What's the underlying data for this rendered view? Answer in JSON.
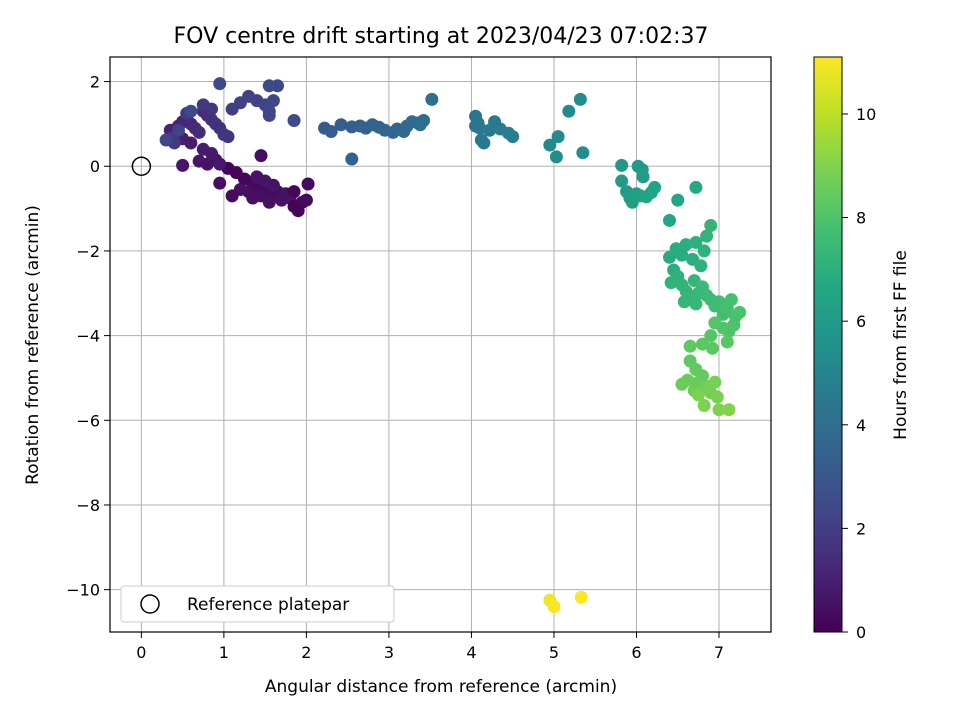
{
  "chart_data": {
    "type": "scatter",
    "title": "FOV centre drift starting at 2023/04/23 07:02:37",
    "xlabel": "Angular distance from reference (arcmin)",
    "ylabel": "Rotation from reference (arcmin)",
    "xlim": [
      -0.38,
      7.63
    ],
    "ylim": [
      -11.0,
      2.58
    ],
    "xticks": [
      0,
      1,
      2,
      3,
      4,
      5,
      6,
      7
    ],
    "yticks": [
      2,
      0,
      -2,
      -4,
      -6,
      -8,
      -10
    ],
    "tick_labels": {
      "x": [
        "0",
        "1",
        "2",
        "3",
        "4",
        "5",
        "6",
        "7"
      ],
      "y": [
        "2",
        "0",
        "−2",
        "−4",
        "−6",
        "−8",
        "−10"
      ]
    },
    "grid": true,
    "legend": {
      "placement": "lower-left",
      "label": "Reference platepar"
    },
    "reference_point": {
      "x": 0,
      "y": 0
    },
    "colorbar": {
      "label": "Hours from first FF file",
      "colormap": "viridis",
      "range": [
        0,
        11.1
      ],
      "ticks": [
        0,
        2,
        4,
        6,
        8,
        10
      ],
      "tick_labels": [
        "0",
        "2",
        "4",
        "6",
        "8",
        "10"
      ]
    },
    "series": [
      {
        "colored_by": "hours",
        "points": [
          [
            1.05,
            -0.05,
            0.1
          ],
          [
            1.15,
            -0.15,
            0.15
          ],
          [
            1.25,
            -0.3,
            0.2
          ],
          [
            1.35,
            -0.4,
            0.25
          ],
          [
            1.4,
            -0.5,
            0.3
          ],
          [
            1.5,
            -0.55,
            0.3
          ],
          [
            1.55,
            -0.65,
            0.35
          ],
          [
            1.6,
            -0.7,
            0.35
          ],
          [
            1.65,
            -0.6,
            0.4
          ],
          [
            1.45,
            -0.7,
            0.4
          ],
          [
            1.35,
            -0.75,
            0.45
          ],
          [
            1.3,
            -0.6,
            0.45
          ],
          [
            1.2,
            -0.55,
            0.5
          ],
          [
            1.55,
            -0.85,
            0.5
          ],
          [
            1.7,
            -0.8,
            0.55
          ],
          [
            1.75,
            -0.65,
            0.55
          ],
          [
            1.8,
            -0.75,
            0.6
          ],
          [
            1.6,
            -0.45,
            0.6
          ],
          [
            1.5,
            -0.35,
            0.65
          ],
          [
            1.4,
            -0.25,
            0.65
          ],
          [
            1.85,
            -0.6,
            0.2
          ],
          [
            1.9,
            -1.05,
            0.15
          ],
          [
            1.95,
            -0.85,
            0.2
          ],
          [
            2.0,
            -0.8,
            0.25
          ],
          [
            2.02,
            -0.42,
            0.3
          ],
          [
            1.85,
            -0.95,
            0.1
          ],
          [
            1.1,
            -0.7,
            0.35
          ],
          [
            1.45,
            0.25,
            0.4
          ],
          [
            0.95,
            -0.4,
            0.45
          ],
          [
            0.9,
            0.15,
            0.5
          ],
          [
            0.8,
            0.05,
            0.55
          ],
          [
            0.7,
            0.12,
            0.6
          ],
          [
            0.5,
            0.02,
            0.65
          ],
          [
            0.95,
            0.05,
            0.7
          ],
          [
            0.85,
            0.3,
            0.75
          ],
          [
            0.75,
            0.4,
            0.8
          ],
          [
            0.6,
            0.55,
            0.85
          ],
          [
            0.5,
            0.65,
            0.9
          ],
          [
            0.4,
            0.75,
            0.95
          ],
          [
            0.35,
            0.85,
            1.0
          ],
          [
            0.45,
            0.95,
            1.05
          ],
          [
            0.5,
            1.05,
            1.1
          ],
          [
            0.55,
            1.15,
            1.2
          ],
          [
            0.6,
            1.0,
            1.25
          ],
          [
            0.65,
            0.9,
            1.3
          ],
          [
            0.7,
            0.8,
            1.35
          ],
          [
            0.75,
            1.3,
            1.4
          ],
          [
            0.8,
            1.2,
            1.45
          ],
          [
            0.85,
            1.1,
            1.5
          ],
          [
            0.9,
            1.0,
            1.55
          ],
          [
            0.95,
            0.9,
            1.6
          ],
          [
            1.0,
            0.75,
            1.65
          ],
          [
            1.05,
            0.7,
            1.7
          ],
          [
            0.85,
            1.35,
            1.75
          ],
          [
            0.75,
            1.45,
            1.8
          ],
          [
            0.55,
            1.25,
            1.85
          ],
          [
            0.4,
            0.55,
            1.9
          ],
          [
            0.35,
            0.65,
            1.95
          ],
          [
            1.1,
            1.35,
            2.0
          ],
          [
            1.2,
            1.5,
            2.05
          ],
          [
            1.3,
            1.65,
            2.1
          ],
          [
            1.4,
            1.55,
            2.15
          ],
          [
            1.5,
            1.45,
            2.2
          ],
          [
            1.55,
            1.3,
            2.25
          ],
          [
            1.55,
            1.2,
            2.3
          ],
          [
            1.6,
            1.55,
            2.35
          ],
          [
            1.65,
            1.9,
            2.4
          ],
          [
            1.55,
            1.9,
            2.45
          ],
          [
            0.95,
            1.95,
            2.5
          ],
          [
            1.85,
            1.08,
            2.55
          ],
          [
            0.3,
            0.62,
            2.3
          ],
          [
            0.6,
            1.3,
            2.4
          ],
          [
            0.45,
            0.85,
            2.2
          ],
          [
            2.22,
            0.9,
            3.2
          ],
          [
            2.3,
            0.82,
            3.25
          ],
          [
            2.42,
            0.98,
            3.3
          ],
          [
            2.55,
            0.93,
            3.35
          ],
          [
            2.65,
            0.95,
            3.4
          ],
          [
            2.72,
            0.9,
            3.45
          ],
          [
            2.8,
            0.98,
            3.5
          ],
          [
            2.88,
            0.92,
            3.55
          ],
          [
            2.95,
            0.85,
            3.6
          ],
          [
            3.05,
            0.8,
            3.65
          ],
          [
            3.1,
            0.88,
            3.7
          ],
          [
            3.18,
            0.82,
            3.75
          ],
          [
            3.22,
            0.95,
            3.8
          ],
          [
            3.28,
            1.05,
            3.85
          ],
          [
            3.35,
            1.02,
            3.9
          ],
          [
            3.38,
            0.98,
            3.95
          ],
          [
            3.42,
            1.08,
            4.0
          ],
          [
            3.52,
            1.58,
            4.05
          ],
          [
            2.55,
            0.17,
            3.4
          ],
          [
            4.05,
            1.18,
            4.3
          ],
          [
            4.08,
            1.02,
            4.35
          ],
          [
            4.1,
            0.9,
            4.4
          ],
          [
            4.12,
            0.62,
            4.45
          ],
          [
            4.15,
            0.55,
            4.45
          ],
          [
            4.22,
            0.85,
            4.5
          ],
          [
            4.28,
            1.05,
            4.55
          ],
          [
            4.35,
            0.88,
            4.6
          ],
          [
            4.45,
            0.78,
            4.65
          ],
          [
            4.5,
            0.7,
            4.7
          ],
          [
            4.05,
            0.95,
            4.3
          ],
          [
            4.95,
            0.5,
            5.2
          ],
          [
            5.05,
            0.7,
            5.25
          ],
          [
            5.18,
            1.3,
            5.3
          ],
          [
            5.32,
            1.58,
            5.35
          ],
          [
            5.03,
            0.22,
            5.4
          ],
          [
            5.35,
            0.32,
            5.45
          ],
          [
            5.82,
            0.02,
            6.0
          ],
          [
            5.82,
            -0.35,
            6.05
          ],
          [
            5.88,
            -0.6,
            6.1
          ],
          [
            5.92,
            -0.75,
            6.15
          ],
          [
            5.95,
            -0.85,
            6.2
          ],
          [
            6.0,
            -0.65,
            6.25
          ],
          [
            6.05,
            -0.7,
            6.3
          ],
          [
            6.02,
            0.0,
            6.0
          ],
          [
            6.07,
            -0.08,
            6.05
          ],
          [
            6.08,
            -0.25,
            6.1
          ],
          [
            6.12,
            -0.72,
            6.35
          ],
          [
            6.18,
            -0.62,
            6.4
          ],
          [
            6.22,
            -0.5,
            6.45
          ],
          [
            6.4,
            -1.28,
            6.55
          ],
          [
            6.5,
            -0.8,
            6.6
          ],
          [
            6.72,
            -0.5,
            6.7
          ],
          [
            6.4,
            -2.15,
            6.8
          ],
          [
            6.48,
            -1.95,
            6.85
          ],
          [
            6.55,
            -2.1,
            6.9
          ],
          [
            6.6,
            -1.85,
            6.95
          ],
          [
            6.68,
            -2.2,
            7.0
          ],
          [
            6.72,
            -1.8,
            7.05
          ],
          [
            6.78,
            -2.35,
            7.1
          ],
          [
            6.82,
            -2.0,
            7.15
          ],
          [
            6.85,
            -1.65,
            7.2
          ],
          [
            6.9,
            -1.4,
            7.25
          ],
          [
            6.45,
            -2.45,
            7.0
          ],
          [
            6.5,
            -2.6,
            7.1
          ],
          [
            6.42,
            -2.75,
            7.15
          ],
          [
            6.55,
            -2.8,
            7.2
          ],
          [
            6.6,
            -2.95,
            7.25
          ],
          [
            6.65,
            -3.1,
            7.3
          ],
          [
            6.7,
            -2.7,
            7.35
          ],
          [
            6.75,
            -3.0,
            7.4
          ],
          [
            6.8,
            -2.85,
            7.45
          ],
          [
            6.85,
            -3.05,
            7.5
          ],
          [
            6.58,
            -3.2,
            7.3
          ],
          [
            6.72,
            -3.25,
            7.4
          ],
          [
            6.9,
            -3.15,
            7.55
          ],
          [
            6.95,
            -3.3,
            7.6
          ],
          [
            7.0,
            -3.2,
            7.65
          ],
          [
            7.05,
            -3.5,
            7.7
          ],
          [
            7.1,
            -3.35,
            7.75
          ],
          [
            7.15,
            -3.15,
            7.8
          ],
          [
            7.2,
            -3.55,
            7.85
          ],
          [
            7.25,
            -3.45,
            7.9
          ],
          [
            7.18,
            -3.75,
            7.95
          ],
          [
            7.12,
            -3.9,
            8.0
          ],
          [
            7.05,
            -3.82,
            8.05
          ],
          [
            6.95,
            -3.7,
            8.1
          ],
          [
            6.9,
            -4.0,
            8.15
          ],
          [
            7.1,
            -4.15,
            8.2
          ],
          [
            6.92,
            -4.3,
            8.25
          ],
          [
            6.8,
            -4.2,
            8.25
          ],
          [
            6.65,
            -4.25,
            8.3
          ],
          [
            6.65,
            -4.6,
            8.35
          ],
          [
            6.72,
            -4.8,
            8.4
          ],
          [
            6.8,
            -4.95,
            8.45
          ],
          [
            6.75,
            -5.1,
            8.5
          ],
          [
            6.62,
            -5.05,
            8.55
          ],
          [
            6.55,
            -5.15,
            8.6
          ],
          [
            6.7,
            -5.3,
            8.65
          ],
          [
            6.85,
            -5.2,
            8.7
          ],
          [
            6.9,
            -5.35,
            8.75
          ],
          [
            6.95,
            -5.1,
            8.8
          ],
          [
            6.98,
            -5.45,
            8.85
          ],
          [
            6.82,
            -5.65,
            8.9
          ],
          [
            6.75,
            -5.4,
            8.9
          ],
          [
            7.0,
            -5.75,
            8.95
          ],
          [
            7.12,
            -5.75,
            9.0
          ],
          [
            4.95,
            -10.25,
            10.9
          ],
          [
            5.0,
            -10.4,
            11.0
          ],
          [
            5.33,
            -10.18,
            11.05
          ]
        ]
      }
    ]
  }
}
